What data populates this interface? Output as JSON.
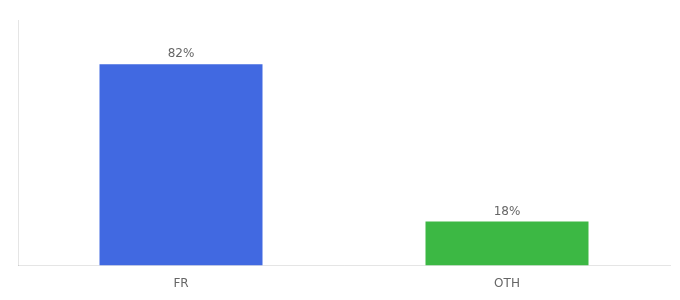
{
  "chart_data": {
    "type": "bar",
    "categories": [
      "FR",
      "OTH"
    ],
    "values": [
      82,
      18
    ],
    "value_labels": [
      "82%",
      "18%"
    ],
    "colors": [
      "#4169e1",
      "#3cb844"
    ],
    "data_labels": true,
    "ylim": [
      0,
      100
    ],
    "tick_labels": "x",
    "grid": false
  }
}
